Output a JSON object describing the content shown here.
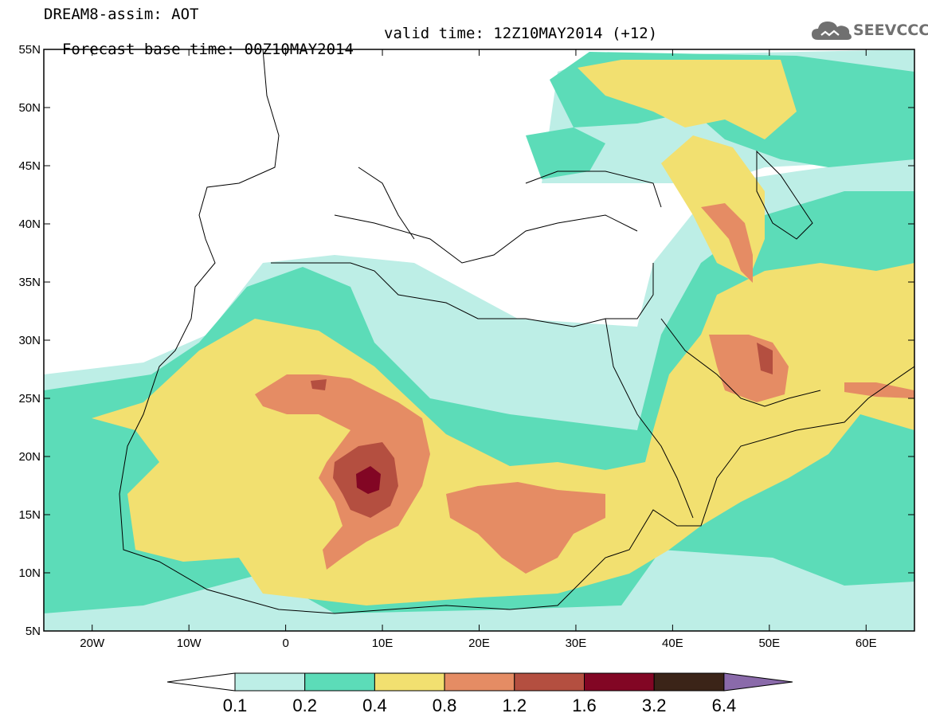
{
  "header": {
    "title_line1": "DREAM8-assim: AOT",
    "base_time": "Forecast base time: 00Z10MAY2014",
    "valid_time": "valid time: 12Z10MAY2014 (+12)"
  },
  "logo": {
    "text": "SEEVCCC",
    "icon": "cloud-icon",
    "color": "#707070"
  },
  "map": {
    "lon_range": [
      -25,
      65
    ],
    "lat_range": [
      5,
      55
    ],
    "lon_ticks": [
      {
        "value": -20,
        "label": "20W"
      },
      {
        "value": -10,
        "label": "10W"
      },
      {
        "value": 0,
        "label": "0"
      },
      {
        "value": 10,
        "label": "10E"
      },
      {
        "value": 20,
        "label": "20E"
      },
      {
        "value": 30,
        "label": "30E"
      },
      {
        "value": 40,
        "label": "40E"
      },
      {
        "value": 50,
        "label": "50E"
      },
      {
        "value": 60,
        "label": "60E"
      }
    ],
    "lat_ticks": [
      {
        "value": 55,
        "label": "55N"
      },
      {
        "value": 50,
        "label": "50N"
      },
      {
        "value": 45,
        "label": "45N"
      },
      {
        "value": 40,
        "label": "40N"
      },
      {
        "value": 35,
        "label": "35N"
      },
      {
        "value": 30,
        "label": "30N"
      },
      {
        "value": 25,
        "label": "25N"
      },
      {
        "value": 20,
        "label": "20N"
      },
      {
        "value": 15,
        "label": "15N"
      },
      {
        "value": 10,
        "label": "10N"
      },
      {
        "value": 5,
        "label": "5N"
      }
    ]
  },
  "colorbar": {
    "end_low_color": "#ffffff",
    "end_high_color": "#8a6aaa",
    "bins": [
      {
        "color": "#bdeee6"
      },
      {
        "color": "#5cdcb8"
      },
      {
        "color": "#f2e070"
      },
      {
        "color": "#e58c64"
      },
      {
        "color": "#b44f40"
      },
      {
        "color": "#820624"
      },
      {
        "color": "#3b2418"
      }
    ],
    "labels": [
      "0.1",
      "0.2",
      "0.4",
      "0.8",
      "1.2",
      "1.6",
      "3.2",
      "6.4"
    ]
  }
}
